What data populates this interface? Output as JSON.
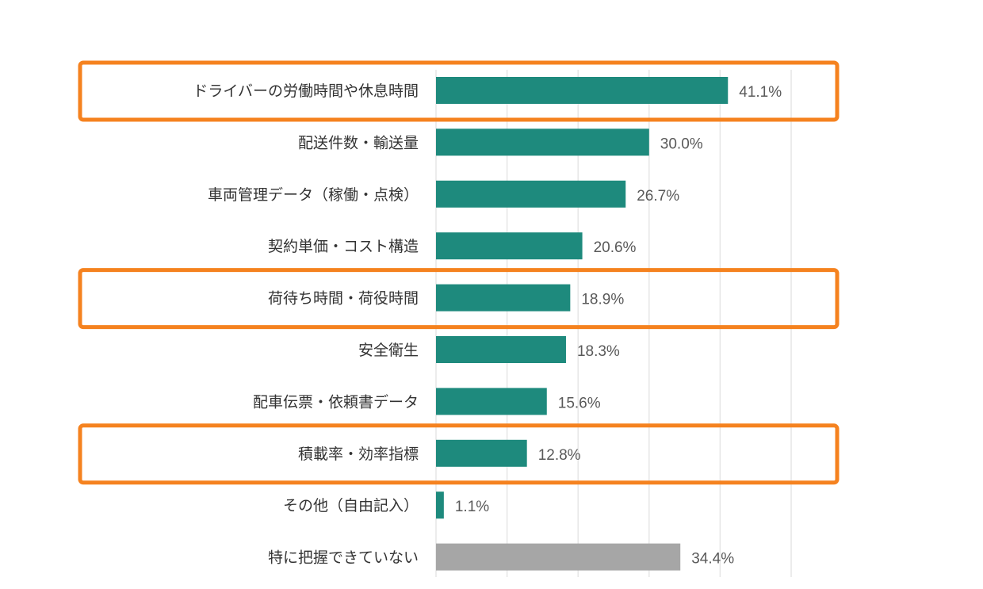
{
  "chart_data": {
    "type": "bar",
    "orientation": "horizontal",
    "title": "",
    "xlabel": "",
    "ylabel": "",
    "xlim": [
      0,
      50
    ],
    "grid": true,
    "grid_step": 10,
    "categories": [
      "ドライバーの労働時間や休息時間",
      "配送件数・輸送量",
      "車両管理データ（稼働・点検）",
      "契約単価・コスト構造",
      "荷待ち時間・荷役時間",
      "安全衛生",
      "配車伝票・依頼書データ",
      "積載率・効率指標",
      "その他（自由記入）",
      "特に把握できていない"
    ],
    "values": [
      41.1,
      30.0,
      26.7,
      20.6,
      18.9,
      18.3,
      15.6,
      12.8,
      1.1,
      34.4
    ],
    "value_labels": [
      "41.1%",
      "30.0%",
      "26.7%",
      "20.6%",
      "18.9%",
      "18.3%",
      "15.6%",
      "12.8%",
      "1.1%",
      "34.4%"
    ],
    "bar_colors": [
      "#1e8a7d",
      "#1e8a7d",
      "#1e8a7d",
      "#1e8a7d",
      "#1e8a7d",
      "#1e8a7d",
      "#1e8a7d",
      "#1e8a7d",
      "#1e8a7d",
      "#a6a6a6"
    ],
    "highlighted_indices": [
      0,
      4,
      7
    ],
    "highlight_color": "#f5821f",
    "grid_color": "#e6e6e6"
  }
}
